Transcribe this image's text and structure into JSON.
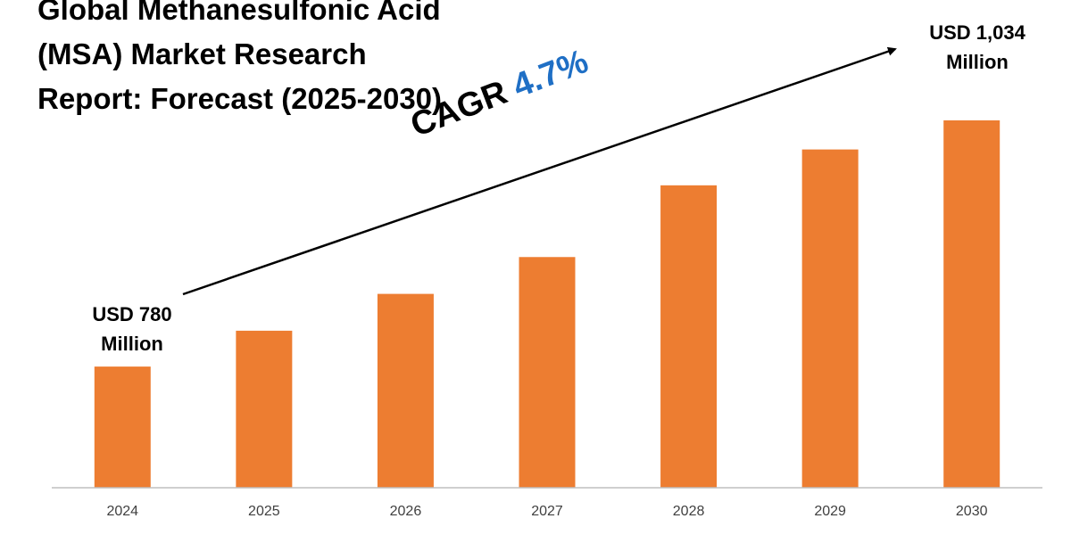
{
  "title_lines": [
    "Global Methanesulfonic Acid",
    "(MSA) Market Research",
    "Report: Forecast (2025-2030)"
  ],
  "cagr": {
    "label": "CAGR",
    "value": "4.7%",
    "value_color": "#1f6fc5"
  },
  "annotations": {
    "start": {
      "line1": "USD 780",
      "line2": "Million"
    },
    "end": {
      "line1": "USD 1,034",
      "line2": "Million"
    }
  },
  "colors": {
    "bar": "#ed7d31",
    "axis": "#bfbfbf",
    "tick_text": "#404040",
    "arrow": "#000000"
  },
  "chart_data": {
    "type": "bar",
    "title": "Global Methanesulfonic Acid (MSA) Market Research Report: Forecast (2025-2030)",
    "xlabel": "",
    "ylabel": "",
    "categories": [
      "2024",
      "2025",
      "2026",
      "2027",
      "2028",
      "2029",
      "2030"
    ],
    "values": [
      780,
      817,
      855,
      893,
      967,
      1004,
      1034
    ],
    "unit": "USD Million",
    "ylim": [
      655,
      1080
    ],
    "grid": false,
    "legend": "none"
  }
}
